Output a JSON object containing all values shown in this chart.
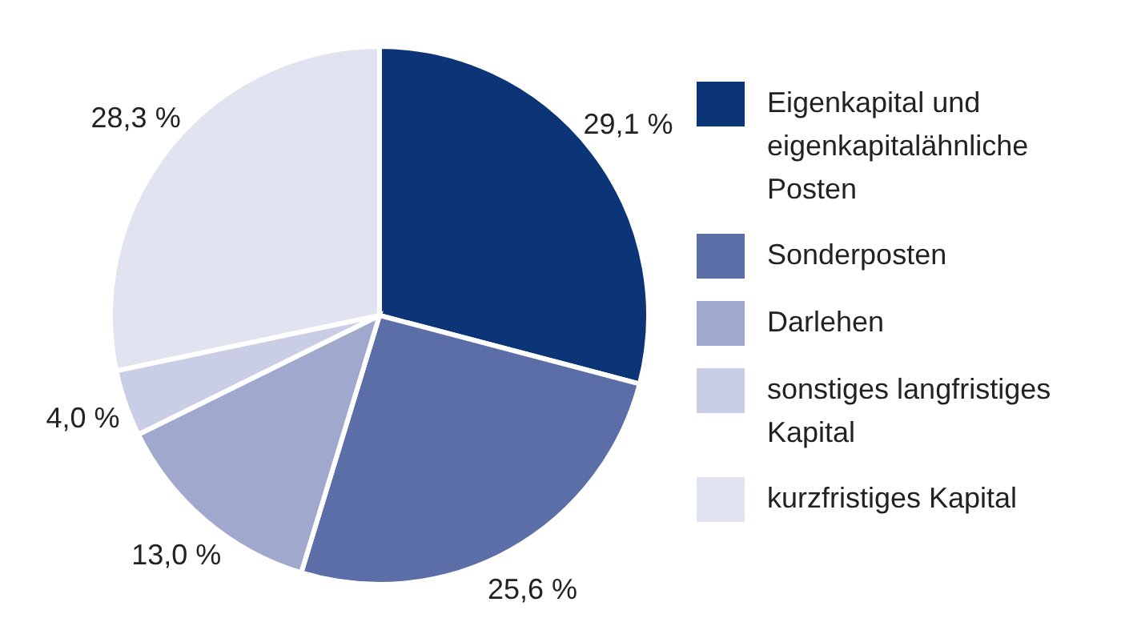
{
  "chart_data": {
    "type": "pie",
    "categories": [
      "Eigenkapital und eigenkapitalähnliche Posten",
      "Sonderposten",
      "Darlehen",
      "sonstiges langfristiges Kapital",
      "kurzfristiges Kapital"
    ],
    "values": [
      29.1,
      25.6,
      13.0,
      4.0,
      28.3
    ],
    "colors": [
      "#0b3577",
      "#5b6ea7",
      "#a0a8cd",
      "#c9cde5",
      "#e1e3f0"
    ],
    "value_labels": [
      "29,1 %",
      "25,6 %",
      "13,0 %",
      "4,0 %",
      "28,3 %"
    ],
    "legend": "right"
  }
}
